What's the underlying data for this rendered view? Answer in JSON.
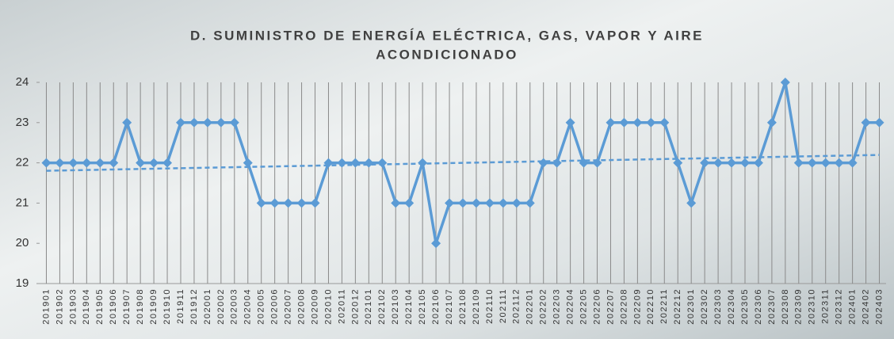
{
  "chart_data": {
    "type": "line",
    "title": [
      "D. SUMINISTRO DE ENERGÍA ELÉCTRICA, GAS, VAPOR Y AIRE",
      "ACONDICIONADO"
    ],
    "categories": [
      "201901",
      "201902",
      "201903",
      "201904",
      "201905",
      "201906",
      "201907",
      "201908",
      "201909",
      "201910",
      "201911",
      "201912",
      "202001",
      "202002",
      "202003",
      "202004",
      "202005",
      "202006",
      "202007",
      "202008",
      "202009",
      "202010",
      "202011",
      "202012",
      "202101",
      "202102",
      "202103",
      "202104",
      "202105",
      "202106",
      "202107",
      "202108",
      "202109",
      "202110",
      "202111",
      "202112",
      "202201",
      "202202",
      "202203",
      "202204",
      "202205",
      "202206",
      "202207",
      "202208",
      "202209",
      "202210",
      "202211",
      "202212",
      "202301",
      "202302",
      "202303",
      "202304",
      "202305",
      "202306",
      "202307",
      "202308",
      "202309",
      "202310",
      "202311",
      "202312",
      "202401",
      "202402",
      "202403"
    ],
    "values": [
      22,
      22,
      22,
      22,
      22,
      22,
      23,
      22,
      22,
      22,
      23,
      23,
      23,
      23,
      23,
      22,
      21,
      21,
      21,
      21,
      21,
      22,
      22,
      22,
      22,
      22,
      21,
      21,
      22,
      20,
      21,
      21,
      21,
      21,
      21,
      21,
      21,
      22,
      22,
      23,
      22,
      22,
      23,
      23,
      23,
      23,
      23,
      22,
      21,
      22,
      22,
      22,
      22,
      22,
      23,
      24,
      22,
      22,
      22,
      22,
      22,
      23,
      23
    ],
    "color": "#5b9bd5",
    "ylim": [
      19,
      24
    ],
    "yticks": [
      19,
      20,
      21,
      22,
      23,
      24
    ],
    "grid": true,
    "trendline": true
  }
}
